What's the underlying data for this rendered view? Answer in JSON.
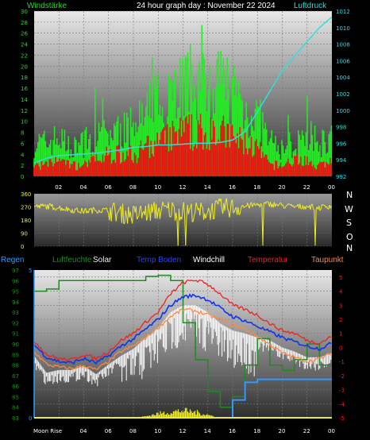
{
  "header": {
    "left_label": "Windstärke",
    "title": "24 hour graph day : November 22 2024",
    "right_label": "Luftdruck"
  },
  "colors": {
    "wind_gust": "#22ee22",
    "wind_avg": "#ee1111",
    "pressure": "#33dddd",
    "direction": "#eeee22",
    "temperature": "#ee2222",
    "windchill": "#ffffff",
    "dewpoint": "#ff8844",
    "soil_temp": "#1133ee",
    "humidity": "#228822",
    "solar": "#eeee22",
    "rain": "#3399ff"
  },
  "x_ticks": [
    "02",
    "04",
    "06",
    "08",
    "10",
    "12",
    "14",
    "16",
    "18",
    "20",
    "22",
    "00"
  ],
  "panel1": {
    "left_ticks": [
      "0",
      "2",
      "4",
      "6",
      "8",
      "10",
      "12",
      "14",
      "16",
      "18",
      "20",
      "22",
      "24",
      "26",
      "28",
      "30"
    ],
    "right_ticks": [
      "992",
      "994",
      "996",
      "998",
      "1000",
      "1002",
      "1004",
      "1006",
      "1008",
      "1010",
      "1012"
    ]
  },
  "panel2": {
    "left_ticks": [
      "0",
      "90",
      "180",
      "270",
      "360"
    ],
    "directions": [
      "N",
      "W",
      "S",
      "O",
      "N"
    ]
  },
  "panel3": {
    "legend": {
      "rain": "Regen",
      "humidity": "Luftfeuchte",
      "solar": "Solar",
      "soil": "Temp Boden",
      "windchill": "Windchill",
      "temperature": "Temperatur",
      "dewpoint": "Taupunkt"
    },
    "left_ticks": [
      "83",
      "84",
      "85",
      "86",
      "87",
      "88",
      "89",
      "90",
      "91",
      "92",
      "93",
      "94",
      "95",
      "96",
      "97"
    ],
    "right_ticks": [
      "-5",
      "-4",
      "-3",
      "-2",
      "-1",
      "0",
      "1",
      "2",
      "3",
      "4",
      "5"
    ],
    "rain_ticks": [
      "0",
      "5"
    ],
    "moon_label": "Moon Rise"
  },
  "chart_data": [
    {
      "type": "bar",
      "x": "hours 00 to 24",
      "series": [
        {
          "name": "Windstärke",
          "color": "#22ee22",
          "x": [
            0,
            1,
            2,
            3,
            4,
            5,
            6,
            7,
            8,
            9,
            10,
            11,
            12,
            13,
            14,
            15,
            16,
            17,
            18,
            19,
            20,
            21,
            22,
            23,
            24
          ],
          "values": [
            6,
            6,
            7,
            5,
            6,
            7,
            8,
            8,
            9,
            11,
            14,
            16,
            17,
            17,
            18,
            17,
            16,
            12,
            11,
            6,
            5,
            6,
            7,
            6,
            7
          ]
        },
        {
          "name": "Windstärke Mittel",
          "color": "#ee1111",
          "x": [
            0,
            1,
            2,
            3,
            4,
            5,
            6,
            7,
            8,
            9,
            10,
            11,
            12,
            13,
            14,
            15,
            16,
            17,
            18,
            19,
            20,
            21,
            22,
            23,
            24
          ],
          "values": [
            2,
            2,
            3,
            2,
            2,
            3,
            4,
            4,
            4,
            5,
            6,
            7,
            8,
            8,
            8,
            8,
            7,
            6,
            5,
            2,
            2,
            3,
            3,
            2,
            3
          ]
        },
        {
          "name": "Luftdruck",
          "color": "#33dddd",
          "x": [
            0,
            1,
            2,
            3,
            4,
            5,
            6,
            7,
            8,
            9,
            10,
            11,
            12,
            13,
            14,
            15,
            16,
            17,
            18,
            19,
            20,
            21,
            22,
            23,
            24
          ],
          "values": [
            993.6,
            994.2,
            994.5,
            994.6,
            994.7,
            994.8,
            995.0,
            995.2,
            995.5,
            995.6,
            995.8,
            995.8,
            995.9,
            996.0,
            996.0,
            996.1,
            996.4,
            997.4,
            999.8,
            1002.3,
            1004.8,
            1006.6,
            1008.3,
            1010.0,
            1011.3
          ]
        }
      ],
      "ylim": [
        0,
        30
      ],
      "y2lim": [
        992,
        1012
      ]
    },
    {
      "type": "scatter",
      "name": "Windrichtung",
      "x": [
        0,
        1,
        2,
        3,
        4,
        5,
        6,
        7,
        8,
        9,
        10,
        11,
        12,
        13,
        14,
        15,
        16,
        17,
        18,
        19,
        20,
        21,
        22,
        23,
        24
      ],
      "values": [
        270,
        275,
        265,
        250,
        240,
        250,
        245,
        225,
        215,
        230,
        245,
        250,
        240,
        235,
        240,
        260,
        265,
        275,
        285,
        290,
        280,
        270,
        275,
        265,
        280
      ],
      "ylim": [
        0,
        360
      ]
    },
    {
      "type": "line",
      "x": [
        0,
        1,
        2,
        3,
        4,
        5,
        6,
        7,
        8,
        9,
        10,
        11,
        12,
        13,
        14,
        15,
        16,
        17,
        18,
        19,
        20,
        21,
        22,
        23,
        24
      ],
      "series": [
        {
          "name": "Temperatur",
          "color": "#ee2222",
          "values": [
            0.5,
            -0.5,
            -0.8,
            -0.9,
            -0.5,
            -0.8,
            -0.3,
            0.5,
            1.0,
            1.8,
            2.5,
            3.8,
            4.6,
            4.8,
            4.5,
            3.8,
            3.0,
            2.7,
            2.3,
            1.7,
            1.2,
            1.0,
            0.5,
            0.3,
            0.8
          ]
        },
        {
          "name": "Windchill",
          "color": "#ffffff",
          "values": [
            -0.8,
            -2.0,
            -1.8,
            -1.8,
            -1.5,
            -2.1,
            -1.4,
            -0.8,
            -0.3,
            0.5,
            1.2,
            2.3,
            2.8,
            2.8,
            2.3,
            1.5,
            1.0,
            0.8,
            0.5,
            0.3,
            -0.2,
            -0.5,
            -0.9,
            -0.9,
            -0.6
          ]
        },
        {
          "name": "Taupunkt",
          "color": "#ff8844",
          "values": [
            -0.3,
            -1.2,
            -1.4,
            -1.5,
            -1.3,
            -1.6,
            -1.0,
            -0.3,
            0.1,
            0.7,
            1.4,
            2.2,
            2.7,
            2.6,
            2.3,
            2.0,
            1.6,
            1.3,
            0.8,
            0.2,
            -0.4,
            -0.7,
            -1.0,
            -0.8,
            -0.4
          ]
        },
        {
          "name": "Temp Boden",
          "color": "#1133ee",
          "values": [
            0.2,
            -0.7,
            -1.0,
            -1.1,
            -0.8,
            -1.1,
            -0.6,
            0.1,
            0.6,
            1.3,
            2.0,
            3.0,
            3.6,
            3.7,
            3.4,
            2.8,
            2.2,
            1.9,
            1.5,
            1.1,
            0.7,
            0.4,
            0.1,
            -0.1,
            0.3
          ]
        },
        {
          "name": "Luftfeuchte",
          "color": "#228822",
          "values": [
            95.0,
            95.2,
            96.0,
            96.0,
            96.0,
            96.0,
            96.0,
            96.0,
            96.0,
            96.4,
            96.5,
            96.0,
            92.0,
            88.5,
            85.5,
            84.0,
            85.0,
            88.0,
            90.5,
            88.0,
            87.5,
            88.5,
            90.0,
            88.0,
            86.5
          ]
        },
        {
          "name": "Solar",
          "color": "#eeee22",
          "values": [
            0,
            0,
            0,
            0,
            0,
            0,
            0,
            0,
            0,
            0.1,
            0.3,
            0.4,
            0.5,
            0.4,
            0.2,
            0,
            0,
            0,
            0,
            0,
            0,
            0,
            0,
            0,
            0
          ]
        },
        {
          "name": "Regen",
          "color": "#3399ff",
          "values": [
            0,
            0,
            0,
            0,
            0,
            0,
            0,
            0,
            0,
            0,
            0,
            0,
            0,
            0,
            0,
            0,
            0.6,
            1.2,
            1.3,
            1.3,
            1.3,
            1.3,
            1.3,
            1.3,
            1.3
          ]
        }
      ],
      "ylim": [
        -5,
        5.5
      ],
      "humidity_ylim": [
        83,
        97
      ],
      "rain_ylim": [
        0,
        5
      ]
    }
  ]
}
